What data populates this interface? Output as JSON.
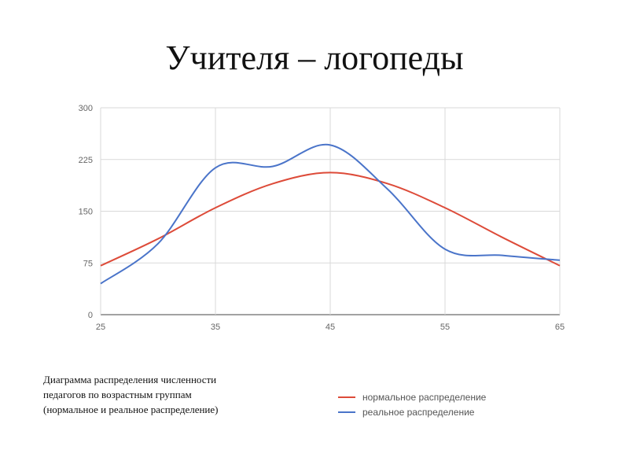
{
  "title": "Учителя – логопеды",
  "caption": [
    "Диаграмма распределения численности",
    "педагогов по возрастным группам",
    "(нормальное и реальное распределение)"
  ],
  "colors": {
    "normal": "#dd4b39",
    "real": "#4a74c9",
    "grid": "#d9d9d9"
  },
  "chart_data": {
    "type": "line",
    "title": "",
    "xlabel": "",
    "ylabel": "",
    "xlim": [
      25,
      65
    ],
    "ylim": [
      0,
      300
    ],
    "x_ticks": [
      25,
      35,
      45,
      55,
      65
    ],
    "y_ticks": [
      0,
      75,
      150,
      225,
      300
    ],
    "grid": true,
    "legend_position": "bottom-right",
    "series": [
      {
        "name": "нормальное распределение",
        "x": [
          25,
          30,
          35,
          40,
          45,
          50,
          55,
          60,
          65
        ],
        "values": [
          71,
          110,
          155,
          190,
          206,
          190,
          155,
          112,
          71
        ]
      },
      {
        "name": "реальное распределение",
        "x": [
          25,
          30,
          35,
          40,
          45,
          50,
          55,
          60,
          65
        ],
        "values": [
          45,
          103,
          213,
          215,
          246,
          182,
          95,
          86,
          79
        ]
      }
    ]
  }
}
